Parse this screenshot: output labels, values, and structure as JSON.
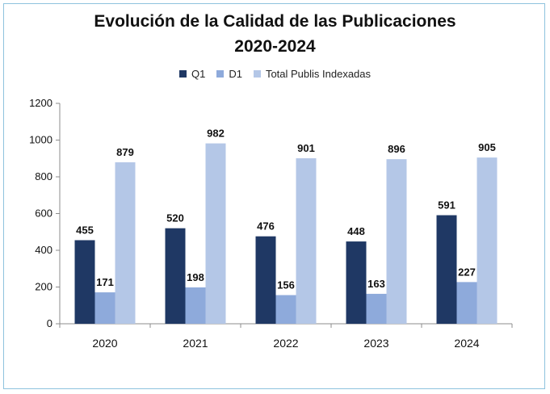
{
  "chart_data": {
    "type": "bar",
    "title_line1": "Evolución de la Calidad de las Publicaciones",
    "title_line2": "2020-2024",
    "categories": [
      "2020",
      "2021",
      "2022",
      "2023",
      "2024"
    ],
    "series": [
      {
        "name": "Q1",
        "values": [
          455,
          520,
          476,
          448,
          591
        ],
        "color": "#1f3864"
      },
      {
        "name": "D1",
        "values": [
          171,
          198,
          156,
          163,
          227
        ],
        "color": "#8eaadb"
      },
      {
        "name": "Total Publis Indexadas",
        "values": [
          879,
          982,
          901,
          896,
          905
        ],
        "color": "#b4c7e7"
      }
    ],
    "yticks": [
      "0",
      "200",
      "400",
      "600",
      "800",
      "1000",
      "1200"
    ],
    "ylim": [
      0,
      1200
    ],
    "legend_position": "top",
    "grid": false
  }
}
